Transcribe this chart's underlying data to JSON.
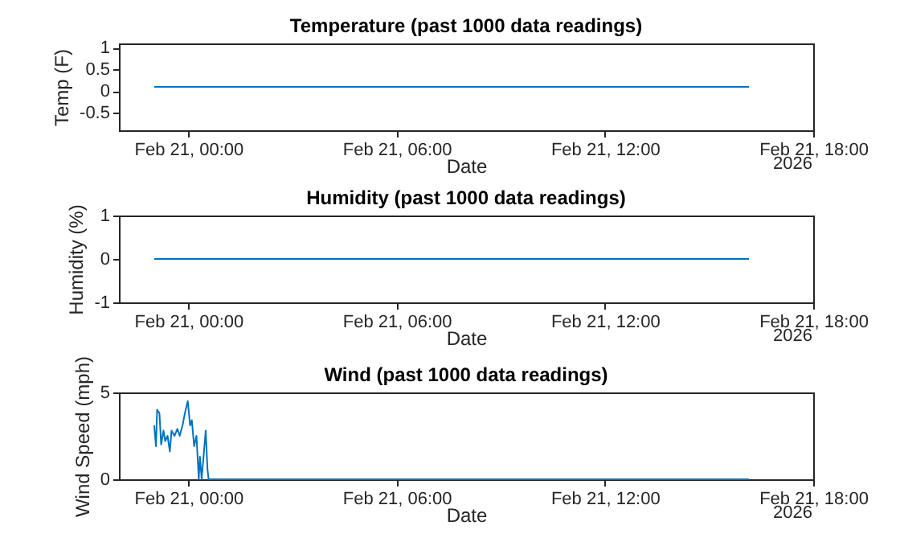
{
  "chart_data": [
    {
      "type": "line",
      "title": "Temperature (past 1000 data readings)",
      "xlabel": "Date",
      "ylabel": "Temp (F)",
      "annotations": [
        "2026"
      ],
      "x": [
        "2026-02-20T23:01",
        "2026-02-21T16:09"
      ],
      "series": [
        {
          "color": "#0072bd",
          "values": [
            0.1,
            0.1
          ]
        }
      ],
      "xlim": [
        "2026-02-20T22:00",
        "2026-02-21T18:00"
      ],
      "xticks": [
        {
          "value": "2026-02-21T00:00",
          "label": "Feb 21, 00:00"
        },
        {
          "value": "2026-02-21T06:00",
          "label": "Feb 21, 06:00"
        },
        {
          "value": "2026-02-21T12:00",
          "label": "Feb 21, 12:00"
        },
        {
          "value": "2026-02-21T18:00",
          "label": "Feb 21, 18:00"
        }
      ],
      "ylim": [
        -0.9,
        1.1
      ],
      "yticks": [
        -0.5,
        0,
        0.5,
        1
      ]
    },
    {
      "type": "line",
      "title": "Humidity (past 1000 data readings)",
      "xlabel": "Date",
      "ylabel": "Humidity (%)",
      "annotations": [
        "2026"
      ],
      "x": [
        "2026-02-20T23:01",
        "2026-02-21T16:09"
      ],
      "series": [
        {
          "color": "#0072bd",
          "values": [
            0,
            0
          ]
        }
      ],
      "xlim": [
        "2026-02-20T22:00",
        "2026-02-21T18:00"
      ],
      "xticks": [
        {
          "value": "2026-02-21T00:00",
          "label": "Feb 21, 00:00"
        },
        {
          "value": "2026-02-21T06:00",
          "label": "Feb 21, 06:00"
        },
        {
          "value": "2026-02-21T12:00",
          "label": "Feb 21, 12:00"
        },
        {
          "value": "2026-02-21T18:00",
          "label": "Feb 21, 18:00"
        }
      ],
      "ylim": [
        -1,
        1
      ],
      "yticks": [
        -1,
        0,
        1
      ]
    },
    {
      "type": "line",
      "title": "Wind (past 1000 data readings)",
      "xlabel": "Date",
      "ylabel": "Wind Speed (mph)",
      "annotations": [
        "2026"
      ],
      "x": [
        "2026-02-20T23:01",
        "2026-02-20T23:04",
        "2026-02-20T23:06",
        "2026-02-20T23:10",
        "2026-02-20T23:13",
        "2026-02-20T23:17",
        "2026-02-20T23:20",
        "2026-02-20T23:24",
        "2026-02-20T23:28",
        "2026-02-20T23:31",
        "2026-02-20T23:36",
        "2026-02-20T23:41",
        "2026-02-20T23:45",
        "2026-02-20T23:50",
        "2026-02-20T23:54",
        "2026-02-20T23:59",
        "2026-02-21T00:03",
        "2026-02-21T00:06",
        "2026-02-21T00:10",
        "2026-02-21T00:14",
        "2026-02-21T00:18",
        "2026-02-21T00:20",
        "2026-02-21T00:23",
        "2026-02-21T00:27",
        "2026-02-21T00:30",
        "2026-02-21T00:33",
        "2026-02-21T00:35",
        "2026-02-21T16:09"
      ],
      "series": [
        {
          "color": "#0072bd",
          "values": [
            3.1,
            1.9,
            4.0,
            3.8,
            2.0,
            2.8,
            2.2,
            2.5,
            1.6,
            2.8,
            2.5,
            2.9,
            2.5,
            3.1,
            3.8,
            4.5,
            3.1,
            3.4,
            1.9,
            2.5,
            0,
            1.3,
            0,
            1.6,
            2.8,
            0.6,
            0,
            0
          ]
        }
      ],
      "xlim": [
        "2026-02-20T22:00",
        "2026-02-21T18:00"
      ],
      "xticks": [
        {
          "value": "2026-02-21T00:00",
          "label": "Feb 21, 00:00"
        },
        {
          "value": "2026-02-21T06:00",
          "label": "Feb 21, 06:00"
        },
        {
          "value": "2026-02-21T12:00",
          "label": "Feb 21, 12:00"
        },
        {
          "value": "2026-02-21T18:00",
          "label": "Feb 21, 18:00"
        }
      ],
      "ylim": [
        0,
        5
      ],
      "yticks": [
        0,
        5
      ]
    }
  ]
}
